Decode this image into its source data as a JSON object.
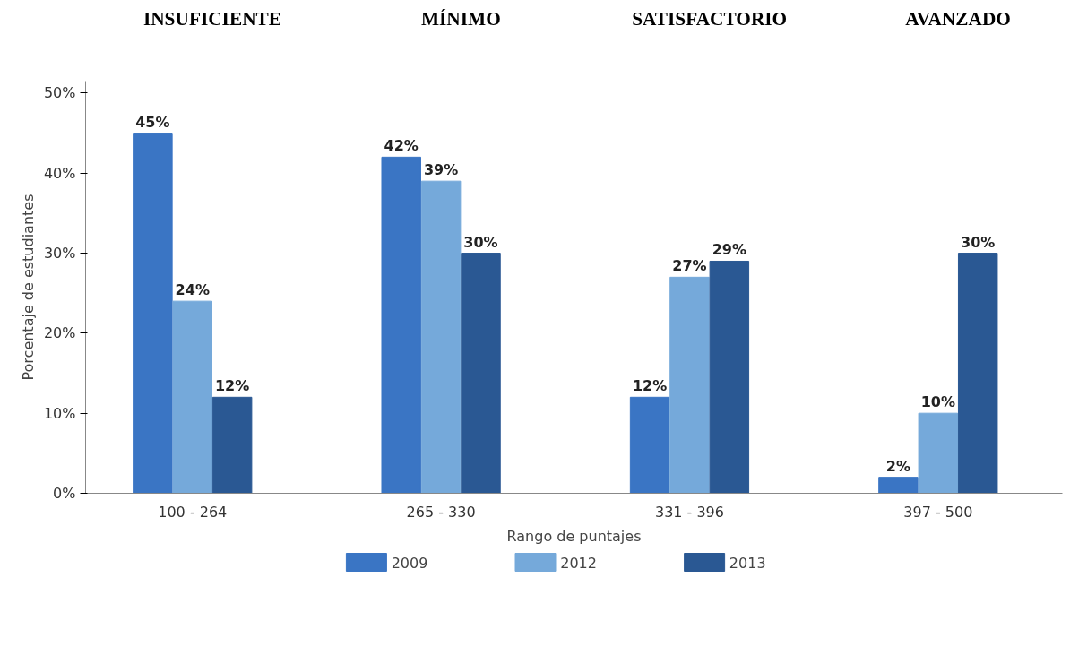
{
  "chart_data": {
    "type": "bar",
    "categories": [
      "100 - 264",
      "265 - 330",
      "331 - 396",
      "397 - 500"
    ],
    "series": [
      {
        "name": "2009",
        "color": "#3a75c4",
        "values": [
          45,
          42,
          12,
          2
        ],
        "value_labels": [
          "45%",
          "42%",
          "12%",
          "2%"
        ]
      },
      {
        "name": "2012",
        "color": "#75a9da",
        "values": [
          24,
          39,
          27,
          10
        ],
        "value_labels": [
          "24%",
          "39%",
          "27%",
          "10%"
        ]
      },
      {
        "name": "2013",
        "color": "#2a5893",
        "values": [
          12,
          30,
          29,
          30
        ],
        "value_labels": [
          "12%",
          "30%",
          "29%",
          "30%"
        ]
      }
    ],
    "xlabel": "Rango de puntajes",
    "ylabel": "Porcentaje de estudiantes",
    "ylim": [
      0,
      51.5
    ],
    "yticks": [
      {
        "value": 0,
        "label": "0%"
      },
      {
        "value": 10,
        "label": "10%"
      },
      {
        "value": 20,
        "label": "20%"
      },
      {
        "value": 30,
        "label": "30%"
      },
      {
        "value": 40,
        "label": "40%"
      },
      {
        "value": 50,
        "label": "50%"
      }
    ],
    "annotations": [
      "INSUFICIENTE",
      "MÍNIMO",
      "SATISFACTORIO",
      "AVANZADO"
    ],
    "grid": false,
    "legend": "bottom"
  }
}
